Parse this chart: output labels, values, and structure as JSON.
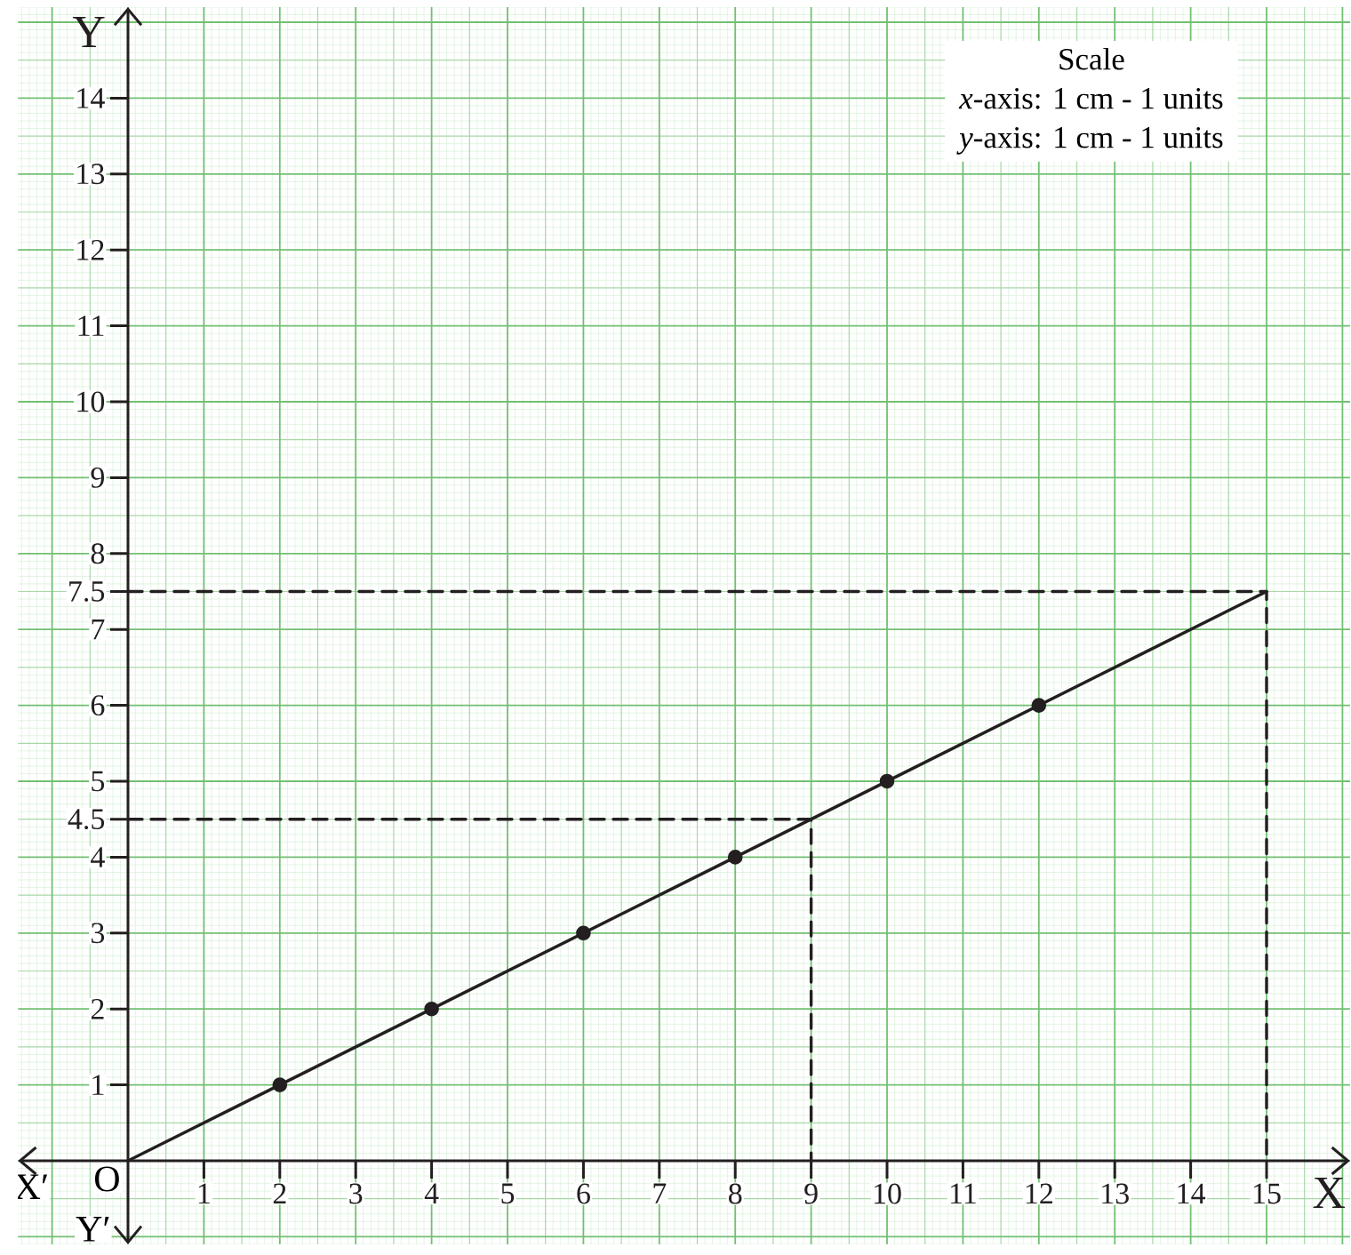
{
  "chart_data": {
    "type": "line",
    "xlabel": "X",
    "ylabel": "Y",
    "annotations": [
      "X′",
      "Y′",
      {
        "text": "O",
        "x": 0,
        "y": 0
      },
      "Scale",
      "*x*-axis: 1 cm - 1 units",
      "*y*-axis: 1 cm - 1 units"
    ],
    "series": [
      {
        "x": [
          0,
          15
        ],
        "values": [
          0,
          7.5
        ],
        "color": "#231f20",
        "marker": "none",
        "line_style": "solid"
      },
      {
        "type": "scatter",
        "x": [
          2,
          4,
          6,
          8,
          10,
          12
        ],
        "values": [
          1,
          2,
          3,
          4,
          5,
          6
        ],
        "color": "#231f20",
        "marker": "circle"
      },
      {
        "x": [
          0,
          9,
          9
        ],
        "values": [
          4.5,
          4.5,
          0
        ],
        "color": "#231f20",
        "marker": "none",
        "line_style": "dashed"
      },
      {
        "x": [
          0,
          15,
          15
        ],
        "values": [
          7.5,
          7.5,
          0
        ],
        "color": "#231f20",
        "marker": "none",
        "line_style": "dashed"
      }
    ],
    "xlim": [
      -1.45,
      16.1
    ],
    "ylim": [
      -1.1,
      15.2
    ],
    "xticks": [
      1,
      2,
      3,
      4,
      5,
      6,
      7,
      8,
      9,
      10,
      11,
      12,
      13,
      14,
      15
    ],
    "yticks": [
      1,
      2,
      3,
      4,
      4.5,
      5,
      6,
      7,
      7.5,
      8,
      9,
      10,
      11,
      12,
      13,
      14
    ],
    "grid": true
  }
}
